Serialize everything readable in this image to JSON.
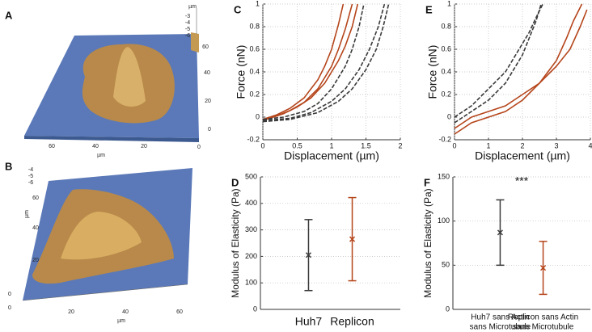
{
  "panels": {
    "A": {
      "label": "A",
      "x_ticks": [
        60,
        40,
        20,
        0
      ],
      "x_unit": "µm",
      "y_ticks": [
        0,
        20,
        40,
        60
      ],
      "z_ticks": [
        -3,
        -4,
        -5,
        -6
      ],
      "z_unit": "µm"
    },
    "B": {
      "label": "B",
      "x_ticks": [
        0,
        20,
        40,
        60
      ],
      "x_unit": "µm",
      "y_ticks": [
        0,
        20,
        40,
        60
      ],
      "y_unit": "µm",
      "z_ticks": [
        -4,
        -5,
        -6
      ]
    }
  },
  "chart_data": [
    {
      "type": "line",
      "panel": "C",
      "xlabel": "Displacement (µm)",
      "ylabel": "Force (nN)",
      "xlim": [
        0,
        2
      ],
      "xticks": [
        0,
        0.5,
        1,
        1.5,
        2
      ],
      "ylim": [
        -0.2,
        1
      ],
      "yticks": [
        -0.2,
        0,
        0.2,
        0.4,
        0.6,
        0.8,
        1
      ],
      "grid": true,
      "series": [
        {
          "color": "#b5451b",
          "style": "solid",
          "x": [
            0,
            0.2,
            0.4,
            0.6,
            0.8,
            0.9,
            1.0,
            1.1,
            1.17
          ],
          "values": [
            -0.02,
            0.02,
            0.08,
            0.17,
            0.33,
            0.45,
            0.6,
            0.82,
            1
          ]
        },
        {
          "color": "#b5451b",
          "style": "solid",
          "x": [
            0,
            0.2,
            0.4,
            0.6,
            0.8,
            1.0,
            1.1,
            1.2,
            1.3
          ],
          "values": [
            -0.02,
            0.01,
            0.06,
            0.13,
            0.25,
            0.45,
            0.6,
            0.78,
            1
          ]
        },
        {
          "color": "#b5451b",
          "style": "solid",
          "x": [
            0,
            0.3,
            0.5,
            0.7,
            0.9,
            1.1,
            1.2,
            1.3,
            1.38
          ],
          "values": [
            -0.03,
            0.03,
            0.09,
            0.17,
            0.3,
            0.5,
            0.63,
            0.8,
            1
          ]
        },
        {
          "color": "#3a3a3a",
          "style": "dashed",
          "x": [
            0,
            0.3,
            0.6,
            0.8,
            1.0,
            1.2,
            1.3,
            1.4,
            1.47
          ],
          "values": [
            -0.02,
            0.0,
            0.05,
            0.12,
            0.25,
            0.45,
            0.6,
            0.8,
            1
          ]
        },
        {
          "color": "#3a3a3a",
          "style": "dashed",
          "x": [
            0,
            0.4,
            0.7,
            1.0,
            1.2,
            1.4,
            1.55,
            1.68,
            1.77
          ],
          "values": [
            -0.03,
            -0.01,
            0.04,
            0.14,
            0.25,
            0.42,
            0.6,
            0.8,
            1
          ]
        },
        {
          "color": "#3a3a3a",
          "style": "dashed",
          "x": [
            0,
            0.4,
            0.8,
            1.1,
            1.3,
            1.5,
            1.65,
            1.75,
            1.83
          ],
          "values": [
            -0.04,
            -0.02,
            0.04,
            0.14,
            0.25,
            0.42,
            0.6,
            0.8,
            1
          ]
        }
      ]
    },
    {
      "type": "errorbar",
      "panel": "D",
      "ylabel": "Modulus of Elasticity (Pa)",
      "categories": [
        "Huh7",
        "Replicon"
      ],
      "values": [
        205,
        265
      ],
      "errors": [
        134,
        157
      ],
      "colors": [
        "#3a3a3a",
        "#b5451b"
      ],
      "ylim": [
        0,
        500
      ],
      "yticks": [
        0,
        100,
        200,
        300,
        400,
        500
      ],
      "grid": true
    },
    {
      "type": "line",
      "panel": "E",
      "xlabel": "Displacement (µm)",
      "ylabel": "Force (nN)",
      "xlim": [
        0,
        4
      ],
      "xticks": [
        0,
        1,
        2,
        3,
        4
      ],
      "ylim": [
        -0.2,
        1
      ],
      "yticks": [
        -0.2,
        0,
        0.2,
        0.4,
        0.6,
        0.8,
        1
      ],
      "grid": true,
      "series": [
        {
          "color": "#b5451b",
          "style": "solid",
          "x": [
            0,
            0.5,
            1,
            1.5,
            2,
            2.5,
            3,
            3.3,
            3.5,
            3.75
          ],
          "values": [
            -0.15,
            -0.05,
            0.0,
            0.05,
            0.15,
            0.3,
            0.5,
            0.7,
            0.85,
            1
          ]
        },
        {
          "color": "#b5451b",
          "style": "solid",
          "x": [
            0,
            0.5,
            1,
            1.5,
            2,
            2.5,
            3,
            3.4,
            3.7,
            3.9
          ],
          "values": [
            -0.1,
            0.0,
            0.05,
            0.1,
            0.2,
            0.3,
            0.45,
            0.6,
            0.8,
            0.95
          ]
        },
        {
          "color": "#3a3a3a",
          "style": "dashed",
          "x": [
            0,
            0.5,
            1,
            1.5,
            2,
            2.2,
            2.4,
            2.55
          ],
          "values": [
            -0.05,
            0.05,
            0.15,
            0.3,
            0.55,
            0.7,
            0.85,
            1
          ]
        },
        {
          "color": "#3a3a3a",
          "style": "dashed",
          "x": [
            0,
            0.5,
            1,
            1.5,
            1.9,
            2.2,
            2.4,
            2.6
          ],
          "values": [
            0.0,
            0.1,
            0.25,
            0.4,
            0.6,
            0.75,
            0.88,
            1
          ]
        }
      ]
    },
    {
      "type": "errorbar",
      "panel": "F",
      "ylabel": "Modulus of Elasticity (Pa)",
      "annotation": "***",
      "categories": [
        [
          "Huh7 sans Actin",
          "sans Microtubule"
        ],
        [
          "Replicon sans Actin",
          "sans Microtubule"
        ]
      ],
      "values": [
        87,
        47
      ],
      "errors": [
        37,
        30
      ],
      "colors": [
        "#3a3a3a",
        "#b5451b"
      ],
      "ylim": [
        0,
        150
      ],
      "yticks": [
        0,
        50,
        100,
        150
      ],
      "grid": true
    }
  ]
}
